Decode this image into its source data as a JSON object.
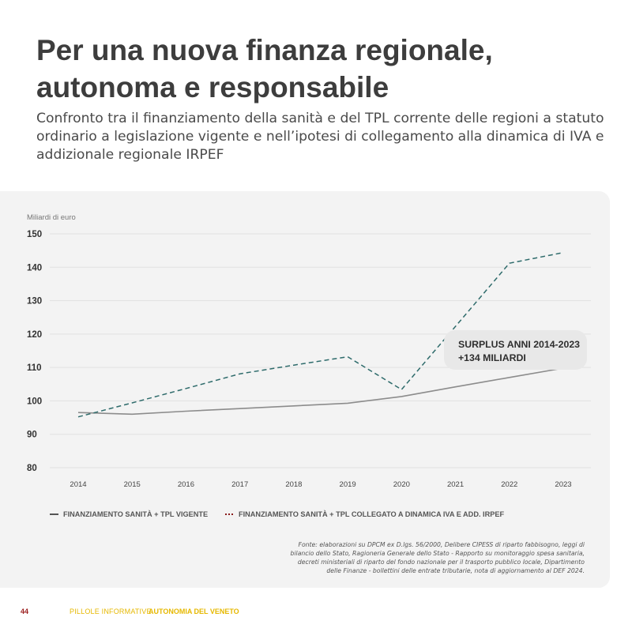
{
  "header": {
    "title_line1": "Per una nuova finanza regionale,",
    "title_line2": "autonoma e responsabile",
    "subtitle": "Confronto tra il finanziamento della sanità e del TPL corrente delle regioni a statuto ordinario a legislazione vigente e nell’ipotesi di collegamento alla dinamica di IVA e addizionale regionale IRPEF"
  },
  "chart_data": {
    "type": "line",
    "ylabel": "Miliardi di euro",
    "xlabel": "",
    "ylim": [
      80,
      150
    ],
    "yticks": [
      80,
      90,
      100,
      110,
      120,
      130,
      140,
      150
    ],
    "x": [
      "2014",
      "2015",
      "2016",
      "2017",
      "2018",
      "2019",
      "2020",
      "2021",
      "2022",
      "2023"
    ],
    "grid": true,
    "legend_position": "bottom-left",
    "series": [
      {
        "name": "FINANZIAMENTO SANITÀ + TPL VIGENTE",
        "style": "solid",
        "color": "#8c8c8c",
        "values": [
          96.5,
          96.0,
          96.9,
          97.7,
          98.5,
          99.3,
          101.3,
          104.2,
          107.0,
          109.8
        ]
      },
      {
        "name": "FINANZIAMENTO SANITÀ + TPL COLLEGATO A DINAMICA IVA E ADD. IRPEF",
        "style": "dashed",
        "color": "#2e6b6b",
        "legend_color": "#8a1c1c",
        "values": [
          95.2,
          99.4,
          103.7,
          108.1,
          110.7,
          113.2,
          103.4,
          122.3,
          141.2,
          144.4
        ]
      }
    ],
    "annotations": [
      {
        "line1": "SURPLUS ANNI 2014-2023",
        "line2": "+134 MILIARDI"
      }
    ]
  },
  "source": "Fonte: elaborazioni su DPCM ex D.lgs. 56/2000, Delibere CIPESS di riparto fabbisogno, leggi di bilancio dello Stato, Ragioneria Generale dello Stato - Rapporto su monitoraggio spesa sanitaria, decreti ministeriali di riparto del fondo nazionale per il trasporto pubblico locale, Dipartimento delle Finanze - bollettini delle entrate tributarie, nota di aggiornamento al DEF 2024.",
  "footer": {
    "page_number": "44",
    "label": "PILLOLE INFORMATIVE",
    "brand": "AUTONOMIA DEL VENETO"
  },
  "colors": {
    "background": "#ffffff",
    "panel": "#f3f3f3",
    "accent_yellow": "#e6b800",
    "accent_red": "#9b1e1e"
  }
}
